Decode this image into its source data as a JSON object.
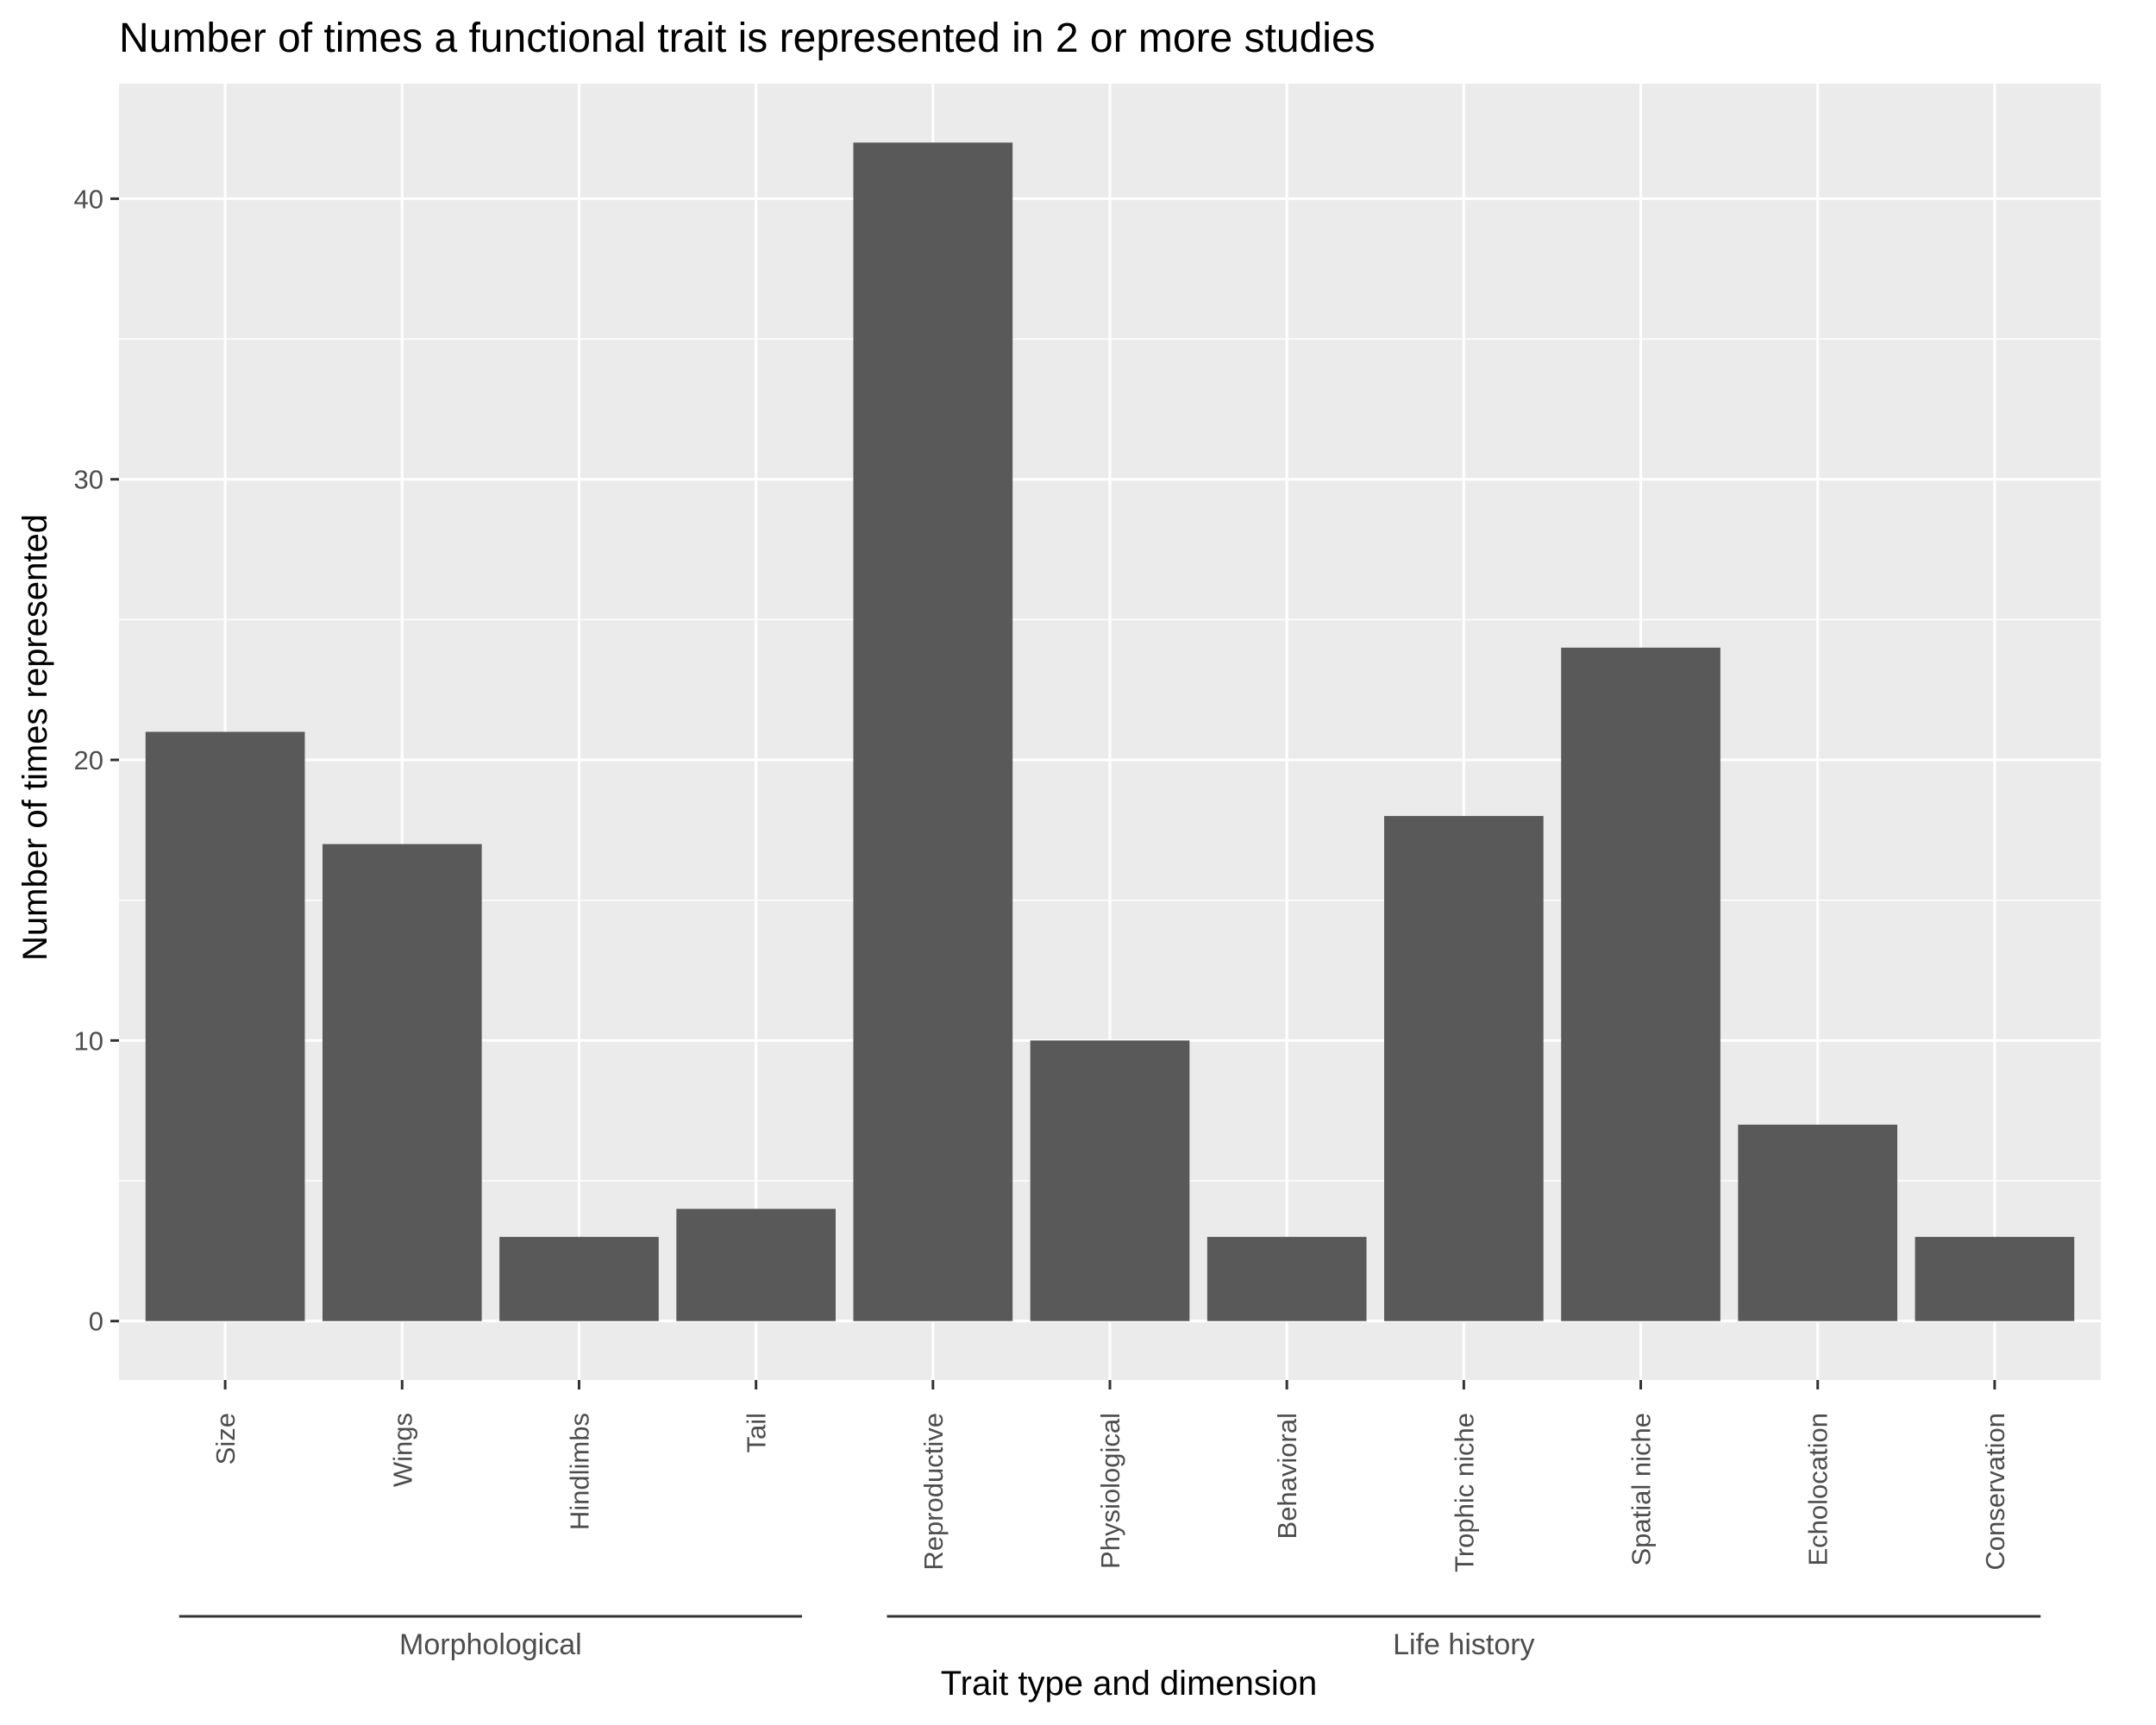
{
  "chart_data": {
    "type": "bar",
    "title": "Number of times a functional trait is represented in 2 or more studies",
    "xlabel": "Trait type and dimension",
    "ylabel": "Number of times represented",
    "categories": [
      "Size",
      "Wings",
      "Hindlimbs",
      "Tail",
      "Reproductive",
      "Physiological",
      "Behavioral",
      "Trophic niche",
      "Spatial niche",
      "Echolocation",
      "Conservation"
    ],
    "values": [
      21,
      17,
      3,
      4,
      42,
      10,
      3,
      18,
      24,
      7,
      3
    ],
    "groups": [
      {
        "label": "Morphological",
        "categories": [
          "Size",
          "Wings",
          "Hindlimbs",
          "Tail"
        ]
      },
      {
        "label": "Life history",
        "categories": [
          "Reproductive",
          "Physiological",
          "Behavioral",
          "Trophic niche",
          "Spatial niche",
          "Echolocation",
          "Conservation"
        ]
      }
    ],
    "yticks": [
      0,
      10,
      20,
      30,
      40
    ],
    "ylim": [
      -2.1,
      44.1
    ],
    "grid": true,
    "legend": "none",
    "colors": {
      "bar": "#595959",
      "panel": "#ebebeb",
      "grid": "#ffffff"
    }
  }
}
